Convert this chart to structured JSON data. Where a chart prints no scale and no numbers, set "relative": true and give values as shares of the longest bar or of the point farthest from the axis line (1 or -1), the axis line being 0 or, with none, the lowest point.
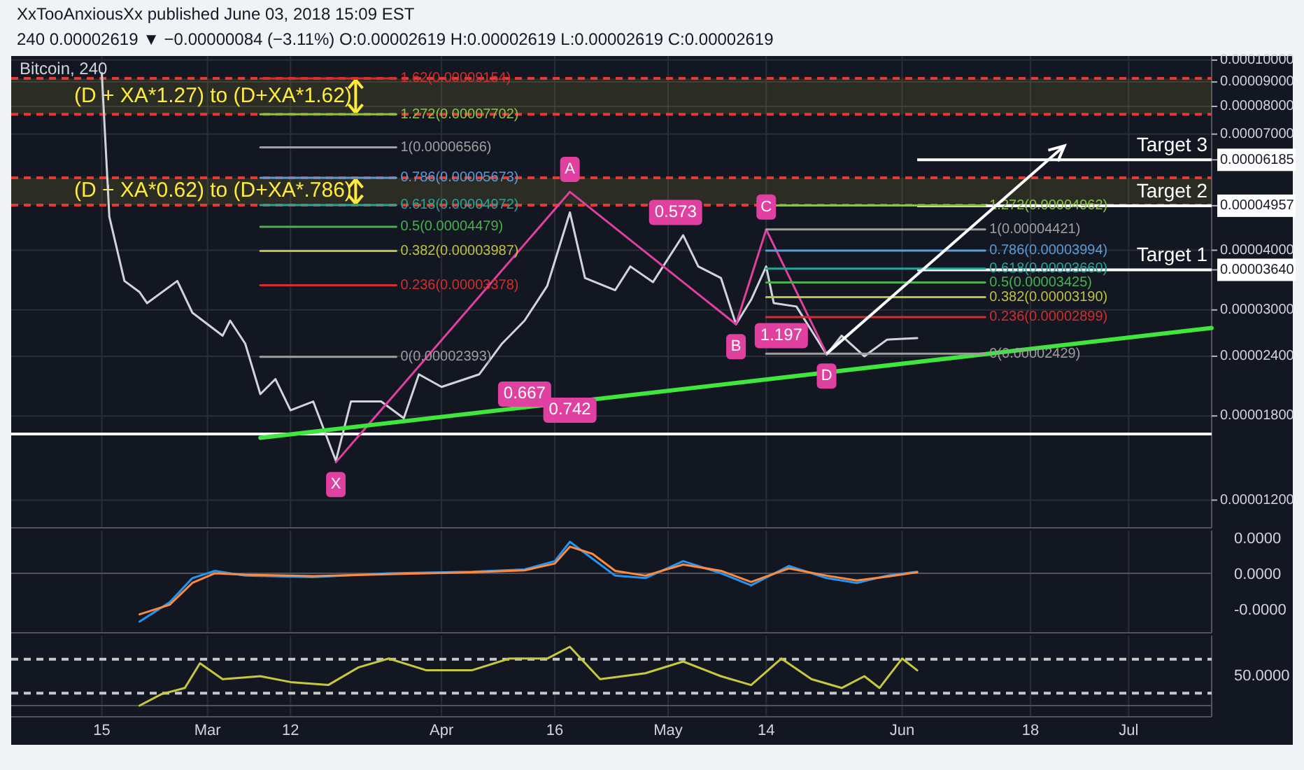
{
  "chart_data": [
    {
      "type": "line",
      "title": "Bitcoin, 240",
      "subtitle": "XxTooAnxiousXx published June 03, 2018 15:09 EST",
      "xlim": [
        "2018-02-03",
        "2018-07-12"
      ],
      "xticks": [
        {
          "value": "2018-02-15",
          "label": null
        },
        {
          "value": "2018-03-01",
          "label": null
        },
        {
          "value": "2018-03-12",
          "label": null
        },
        {
          "value": "2018-04-01",
          "label": null
        },
        {
          "value": "2018-04-16",
          "label": null
        },
        {
          "value": "2018-05-01",
          "label": null
        },
        {
          "value": "2018-05-14",
          "label": null
        },
        {
          "value": "2018-06-01",
          "label": null
        },
        {
          "value": "2018-06-18",
          "label": null
        },
        {
          "value": "2018-07-01",
          "label": null
        }
      ],
      "ylim": [
        1.05e-05,
        0.000102
      ],
      "log": true,
      "yticks": [
        {
          "value": 1.2e-05,
          "label": "0.00001200"
        },
        {
          "value": 1.8e-05,
          "label": "0.00001800"
        },
        {
          "value": 2.4e-05,
          "label": "0.00002400"
        },
        {
          "value": 3e-05,
          "label": "0.00003000"
        },
        {
          "value": 3.64e-05,
          "label": "0.00003640"
        },
        {
          "value": 4e-05,
          "label": "0.00004000"
        },
        {
          "value": 4.957e-05,
          "label": "0.00004957"
        },
        {
          "value": 6.185e-05,
          "label": "0.00006185"
        },
        {
          "value": 7e-05,
          "label": "0.00007000"
        },
        {
          "value": 8e-05,
          "label": "0.00008000"
        },
        {
          "value": 9e-05,
          "label": "0.00009000"
        },
        {
          "value": 0.0001,
          "label": "0.00010000"
        }
      ],
      "grid": true,
      "tick_labels": "y",
      "series": [
        {
          "color": "#d1d4dc",
          "x": [
            "2018-02-15",
            "2018-02-16",
            "2018-02-18",
            "2018-02-20",
            "2018-02-21",
            "2018-02-25",
            "2018-02-27",
            "2018-03-03",
            "2018-03-04",
            "2018-03-06",
            "2018-03-08",
            "2018-03-10",
            "2018-03-12",
            "2018-03-15",
            "2018-03-18",
            "2018-03-20",
            "2018-03-24",
            "2018-03-27",
            "2018-03-29",
            "2018-04-01",
            "2018-04-06",
            "2018-04-09",
            "2018-04-12",
            "2018-04-15",
            "2018-04-18",
            "2018-04-20",
            "2018-04-24",
            "2018-04-26",
            "2018-04-29",
            "2018-05-03",
            "2018-05-05",
            "2018-05-08",
            "2018-05-10",
            "2018-05-12",
            "2018-05-14",
            "2018-05-15",
            "2018-05-18",
            "2018-05-22",
            "2018-05-24",
            "2018-05-27",
            "2018-05-30",
            "2018-06-03"
          ],
          "values": [
            9.4e-05,
            4.7e-05,
            3.45e-05,
            3.27e-05,
            3.1e-05,
            3.45e-05,
            2.96e-05,
            2.65e-05,
            2.85e-05,
            2.55e-05,
            2e-05,
            2.15e-05,
            1.85e-05,
            1.93e-05,
            1.45e-05,
            1.93e-05,
            1.93e-05,
            1.78e-05,
            2.2e-05,
            2.07e-05,
            2.2e-05,
            2.55e-05,
            2.85e-05,
            3.37e-05,
            4.8e-05,
            3.5e-05,
            3.3e-05,
            3.7e-05,
            3.43e-05,
            4.3e-05,
            3.7e-05,
            3.5e-05,
            2.8e-05,
            3.15e-05,
            3.7e-05,
            3.1e-05,
            3.05e-05,
            2.42e-05,
            2.65e-05,
            2.4e-05,
            2.6e-05,
            2.619e-05
          ]
        },
        {
          "color": "#e040a0",
          "x": [
            "2018-03-18",
            "2018-04-18",
            "2018-05-10",
            "2018-05-14",
            "2018-05-22"
          ],
          "values": [
            1.44e-05,
            5.3e-05,
            2.8e-05,
            4.421e-05,
            2.429e-05
          ]
        },
        {
          "color": "#3ee63e",
          "x": [
            "2018-03-08",
            "2018-07-12"
          ],
          "values": [
            1.62e-05,
            2.75e-05
          ]
        },
        {
          "color": "#d32f2f",
          "x": [
            "2018-03-08",
            "2018-03-26"
          ],
          "values": [
            9.154e-05,
            9.154e-05
          ]
        },
        {
          "color": "#8bc34a",
          "x": [
            "2018-03-08",
            "2018-03-26"
          ],
          "values": [
            7.702e-05,
            7.702e-05
          ]
        },
        {
          "color": "#a0a0a0",
          "x": [
            "2018-03-08",
            "2018-03-26"
          ],
          "values": [
            6.566e-05,
            6.566e-05
          ]
        },
        {
          "color": "#5b9bd5",
          "x": [
            "2018-03-08",
            "2018-03-26"
          ],
          "values": [
            5.673e-05,
            5.673e-05
          ]
        },
        {
          "color": "#26a69a",
          "x": [
            "2018-03-08",
            "2018-03-26"
          ],
          "values": [
            4.972e-05,
            4.972e-05
          ]
        },
        {
          "color": "#4caf50",
          "x": [
            "2018-03-08",
            "2018-03-26"
          ],
          "values": [
            4.479e-05,
            4.479e-05
          ]
        },
        {
          "color": "#c0c040",
          "x": [
            "2018-03-08",
            "2018-03-26"
          ],
          "values": [
            3.987e-05,
            3.987e-05
          ]
        },
        {
          "color": "#d32f2f",
          "x": [
            "2018-03-08",
            "2018-03-26"
          ],
          "values": [
            3.378e-05,
            3.378e-05
          ]
        },
        {
          "color": "#9e9e9e",
          "x": [
            "2018-03-08",
            "2018-03-26"
          ],
          "values": [
            2.393e-05,
            2.393e-05
          ]
        },
        {
          "color": "#8bc34a",
          "x": [
            "2018-05-14",
            "2018-06-12"
          ],
          "values": [
            4.962e-05,
            4.962e-05
          ]
        },
        {
          "color": "#a0a0a0",
          "x": [
            "2018-05-14",
            "2018-06-12"
          ],
          "values": [
            4.421e-05,
            4.421e-05
          ]
        },
        {
          "color": "#5b9bd5",
          "x": [
            "2018-05-14",
            "2018-06-12"
          ],
          "values": [
            3.994e-05,
            3.994e-05
          ]
        },
        {
          "color": "#26a69a",
          "x": [
            "2018-05-14",
            "2018-06-12"
          ],
          "values": [
            3.66e-05,
            3.66e-05
          ]
        },
        {
          "color": "#4caf50",
          "x": [
            "2018-05-14",
            "2018-06-12"
          ],
          "values": [
            3.425e-05,
            3.425e-05
          ]
        },
        {
          "color": "#c0c040",
          "x": [
            "2018-05-14",
            "2018-06-12"
          ],
          "values": [
            3.19e-05,
            3.19e-05
          ]
        },
        {
          "color": "#d32f2f",
          "x": [
            "2018-05-14",
            "2018-06-12"
          ],
          "values": [
            2.899e-05,
            2.899e-05
          ]
        },
        {
          "color": "#9e9e9e",
          "x": [
            "2018-05-14",
            "2018-06-12"
          ],
          "values": [
            2.429e-05,
            2.429e-05
          ]
        }
      ],
      "ref_lines": [
        {
          "axis": "y",
          "value": 9.154e-05,
          "color": "#e53935",
          "line_style": "dashed"
        },
        {
          "axis": "y",
          "value": 7.702e-05,
          "color": "#e53935",
          "line_style": "dashed"
        },
        {
          "axis": "y",
          "value": 5.673e-05,
          "color": "#e53935",
          "line_style": "dashed"
        },
        {
          "axis": "y",
          "value": 4.972e-05,
          "color": "#e53935",
          "line_style": "dashed"
        },
        {
          "axis": "y",
          "value": 6.185e-05,
          "label": "Target 3",
          "color": "#ffffff"
        },
        {
          "axis": "y",
          "value": 4.957e-05,
          "label": "Target 2",
          "color": "#ffffff"
        },
        {
          "axis": "y",
          "value": 3.64e-05,
          "label": "Target 1",
          "color": "#ffffff"
        },
        {
          "axis": "y",
          "value": 1.65e-05,
          "color": "#ffffff"
        }
      ],
      "bands": [
        {
          "axis": "y",
          "from": 7.702e-05,
          "to": 9.154e-05,
          "label": "(D + XA*1.27) to (D+XA*1.62)",
          "color": "#ffeb3b"
        },
        {
          "axis": "y",
          "from": 4.972e-05,
          "to": 5.673e-05,
          "label": "(D + XA*0.62) to (D+XA*.786)",
          "color": "#ffeb3b"
        }
      ],
      "annotations": [
        {
          "text": "X",
          "x": "2018-03-18",
          "y": 1.44e-05
        },
        {
          "text": "A",
          "x": "2018-04-18",
          "y": 5.3e-05
        },
        {
          "text": "B",
          "x": "2018-05-10",
          "y": 2.8e-05
        },
        {
          "text": "C",
          "x": "2018-05-14",
          "y": 4.421e-05
        },
        {
          "text": "D",
          "x": "2018-05-22",
          "y": 2.429e-05
        },
        {
          "text": "0.573",
          "x": "2018-05-02",
          "y": 4.8e-05
        },
        {
          "text": "0.667",
          "x": "2018-04-12",
          "y": 2e-05
        },
        {
          "text": "0.742",
          "x": "2018-04-18",
          "y": 1.85e-05
        },
        {
          "text": "1.197",
          "x": "2018-05-16",
          "y": 2.65e-05
        },
        {
          "text": "1.62(0.00009154)",
          "x": "2018-03-26",
          "y": 9.154e-05
        },
        {
          "text": "1.272(0.00007702)",
          "x": "2018-03-26",
          "y": 7.702e-05
        },
        {
          "text": "1(0.00006566)",
          "x": "2018-03-26",
          "y": 6.566e-05
        },
        {
          "text": "0.786(0.00005673)",
          "x": "2018-03-26",
          "y": 5.673e-05
        },
        {
          "text": "0.618(0.00004972)",
          "x": "2018-03-26",
          "y": 4.972e-05
        },
        {
          "text": "0.5(0.00004479)",
          "x": "2018-03-26",
          "y": 4.479e-05
        },
        {
          "text": "0.382(0.00003987)",
          "x": "2018-03-26",
          "y": 3.987e-05
        },
        {
          "text": "0.236(0.00003378)",
          "x": "2018-03-26",
          "y": 3.378e-05
        },
        {
          "text": "0(0.00002393)",
          "x": "2018-03-26",
          "y": 2.393e-05
        },
        {
          "text": "1.272(0.00004962)",
          "x": "2018-06-12",
          "y": 4.962e-05
        },
        {
          "text": "1(0.00004421)",
          "x": "2018-06-12",
          "y": 4.421e-05
        },
        {
          "text": "0.786(0.00003994)",
          "x": "2018-06-12",
          "y": 3.994e-05
        },
        {
          "text": "0.618(0.00003660)",
          "x": "2018-06-12",
          "y": 3.66e-05
        },
        {
          "text": "0.5(0.00003425)",
          "x": "2018-06-12",
          "y": 3.425e-05
        },
        {
          "text": "0.382(0.00003190)",
          "x": "2018-06-12",
          "y": 3.19e-05
        },
        {
          "text": "0.236(0.00002899)",
          "x": "2018-06-12",
          "y": 2.899e-05
        },
        {
          "text": "0(0.00002429)",
          "x": "2018-06-12",
          "y": 2.429e-05
        },
        "240 0.00002619 ▼ −0.00000084 (−3.11%) O:0.00002619 H:0.00002619 L:0.00002619 C:0.00002619"
      ]
    },
    {
      "type": "line",
      "relative": true,
      "xlim": [
        "2018-02-03",
        "2018-07-12"
      ],
      "xticks": [
        {
          "value": "2018-02-15",
          "label": null
        },
        {
          "value": "2018-03-01",
          "label": null
        },
        {
          "value": "2018-03-12",
          "label": null
        },
        {
          "value": "2018-04-01",
          "label": null
        },
        {
          "value": "2018-04-16",
          "label": null
        },
        {
          "value": "2018-05-01",
          "label": null
        },
        {
          "value": "2018-05-14",
          "label": null
        },
        {
          "value": "2018-06-01",
          "label": null
        },
        {
          "value": "2018-06-18",
          "label": null
        },
        {
          "value": "2018-07-01",
          "label": null
        }
      ],
      "grid": "x",
      "tick_labels": false,
      "x": [
        "2018-02-20",
        "2018-02-24",
        "2018-02-27",
        "2018-03-02",
        "2018-03-06",
        "2018-03-15",
        "2018-03-25",
        "2018-04-05",
        "2018-04-12",
        "2018-04-16",
        "2018-04-18",
        "2018-04-21",
        "2018-04-24",
        "2018-04-28",
        "2018-05-03",
        "2018-05-08",
        "2018-05-12",
        "2018-05-17",
        "2018-05-22",
        "2018-05-26",
        "2018-05-30",
        "2018-06-03"
      ],
      "series": [
        {
          "color": "#2196f3",
          "values": [
            -1,
            -0.6,
            -0.1,
            0.05,
            -0.05,
            -0.08,
            0,
            0.03,
            0.08,
            0.25,
            0.65,
            0.3,
            -0.05,
            -0.1,
            0.25,
            0,
            -0.25,
            0.15,
            -0.1,
            -0.2,
            -0.05,
            0.03
          ]
        },
        {
          "color": "#ff8a3d",
          "values": [
            -0.85,
            -0.65,
            -0.2,
            0,
            -0.03,
            -0.06,
            -0.02,
            0.02,
            0.06,
            0.2,
            0.55,
            0.4,
            0.05,
            -0.05,
            0.18,
            0.05,
            -0.18,
            0.1,
            -0.05,
            -0.15,
            -0.07,
            0.02
          ]
        }
      ],
      "annotations": [
        "0.0000",
        "0.0000",
        "-0.0000"
      ]
    },
    {
      "type": "line",
      "relative": true,
      "xlim": [
        "2018-02-03",
        "2018-07-12"
      ],
      "xticks": [
        {
          "value": "2018-02-15",
          "label": "15"
        },
        {
          "value": "2018-03-01",
          "label": "Mar"
        },
        {
          "value": "2018-03-12",
          "label": "12"
        },
        {
          "value": "2018-04-01",
          "label": "Apr"
        },
        {
          "value": "2018-04-16",
          "label": "16"
        },
        {
          "value": "2018-05-01",
          "label": "May"
        },
        {
          "value": "2018-05-14",
          "label": "14"
        },
        {
          "value": "2018-06-01",
          "label": "Jun"
        },
        {
          "value": "2018-06-18",
          "label": "18"
        },
        {
          "value": "2018-07-01",
          "label": "Jul"
        }
      ],
      "grid": "x",
      "tick_labels": "x",
      "x": [
        "2018-02-20",
        "2018-02-23",
        "2018-02-26",
        "2018-02-28",
        "2018-03-03",
        "2018-03-08",
        "2018-03-12",
        "2018-03-17",
        "2018-03-21",
        "2018-03-25",
        "2018-03-30",
        "2018-04-05",
        "2018-04-10",
        "2018-04-15",
        "2018-04-18",
        "2018-04-22",
        "2018-04-28",
        "2018-05-03",
        "2018-05-08",
        "2018-05-12",
        "2018-05-16",
        "2018-05-20",
        "2018-05-24",
        "2018-05-27",
        "2018-05-29",
        "2018-06-01",
        "2018-06-03"
      ],
      "series": [
        {
          "color": "#c8c83c",
          "values": [
            0,
            0.2,
            0.3,
            0.72,
            0.45,
            0.5,
            0.4,
            0.35,
            0.65,
            0.8,
            0.6,
            0.6,
            0.8,
            0.8,
            1,
            0.45,
            0.55,
            0.75,
            0.5,
            0.35,
            0.8,
            0.45,
            0.3,
            0.5,
            0.3,
            0.8,
            0.6
          ]
        }
      ],
      "ref_lines": [
        {
          "axis": "y",
          "value": 0.79,
          "color": "#c8c8c8",
          "line_style": "dashed"
        },
        {
          "axis": "y",
          "value": 0.21,
          "color": "#c8c8c8",
          "line_style": "dashed"
        }
      ],
      "annotations": [
        "50.0000"
      ]
    }
  ]
}
